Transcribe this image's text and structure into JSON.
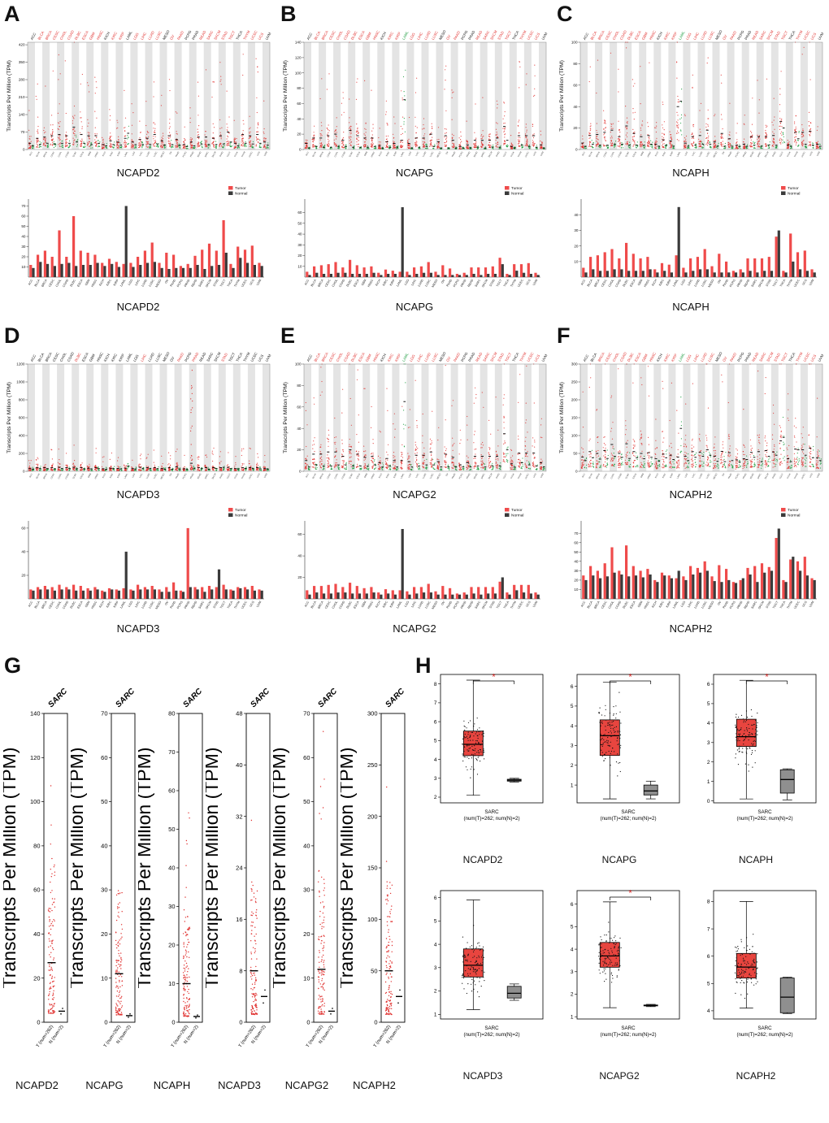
{
  "panel_letters": [
    "A",
    "B",
    "C",
    "D",
    "E",
    "F",
    "G",
    "H"
  ],
  "axis": {
    "tpm_label": "Transcripts Per Million (TPM)"
  },
  "legend": {
    "tumor": "Tumor",
    "normal": "Normal"
  },
  "colors": {
    "tumor_dot": "#e0302e",
    "normal_dot": "#1f9e42",
    "tumor_bar": "#ef4b4b",
    "normal_bar": "#3a3a3a",
    "tumor_box": "#e8453f",
    "normal_box": "#8f8f8f",
    "stripe": "#e4e4e4",
    "star": "#e0302e"
  },
  "cancer_types": [
    "ACC",
    "BLCA",
    "BRCA",
    "CESC",
    "CHOL",
    "COAD",
    "DLBC",
    "ESCA",
    "GBM",
    "HNSC",
    "KICH",
    "KIRC",
    "KIRP",
    "LAML",
    "LGG",
    "LIHC",
    "LUAD",
    "LUSC",
    "MESO",
    "OV",
    "PAAD",
    "PCPG",
    "PRAD",
    "READ",
    "SARC",
    "SKCM",
    "STAD",
    "TGCT",
    "THCA",
    "THYM",
    "UCEC",
    "UCS",
    "UVM"
  ],
  "chart_data": [
    {
      "type": "gepia-dot",
      "gene": "NCAPD2",
      "seed": 1,
      "ylim": [
        0,
        430
      ],
      "yticks": [
        0,
        70,
        140,
        210,
        280,
        350,
        420
      ],
      "label_colors": "krrrrrrrrrkrrkrrrrkrrkkrrrrrkrrrk",
      "tumor_med": [
        25,
        45,
        50,
        55,
        60,
        55,
        90,
        60,
        55,
        55,
        20,
        35,
        30,
        45,
        30,
        40,
        45,
        60,
        35,
        55,
        40,
        20,
        30,
        50,
        50,
        45,
        55,
        70,
        25,
        60,
        55,
        60,
        30
      ],
      "normal_med": [
        15,
        20,
        25,
        22,
        25,
        25,
        30,
        25,
        20,
        25,
        15,
        20,
        18,
        65,
        20,
        20,
        20,
        22,
        18,
        20,
        18,
        12,
        15,
        22,
        20,
        20,
        22,
        30,
        15,
        25,
        22,
        25,
        18
      ]
    },
    {
      "type": "bar",
      "gene": "NCAPD2",
      "ylim": [
        0,
        72
      ],
      "yticks": [
        10,
        20,
        30,
        40,
        50,
        60,
        70
      ],
      "tumor": [
        12,
        22,
        26,
        20,
        46,
        20,
        60,
        26,
        24,
        22,
        14,
        18,
        15,
        13,
        14,
        20,
        26,
        34,
        14,
        24,
        22,
        11,
        13,
        21,
        27,
        33,
        26,
        56,
        13,
        30,
        27,
        31,
        14
      ],
      "normal": [
        9,
        15,
        13,
        11,
        13,
        14,
        11,
        12,
        12,
        14,
        11,
        13,
        10,
        70,
        10,
        12,
        14,
        15,
        9,
        8,
        9,
        9,
        9,
        12,
        8,
        11,
        12,
        24,
        9,
        19,
        14,
        12,
        11
      ]
    },
    {
      "type": "gepia-dot",
      "gene": "NCAPG",
      "seed": 2,
      "ylim": [
        0,
        140
      ],
      "yticks": [
        0,
        20,
        40,
        60,
        80,
        100,
        120,
        140
      ],
      "label_colors": "krrrrrrrrrkrrgrrrrkrrkkrrrrrkrrrk",
      "tumor_med": [
        8,
        15,
        15,
        18,
        20,
        12,
        25,
        18,
        15,
        15,
        5,
        10,
        8,
        12,
        8,
        15,
        15,
        20,
        10,
        18,
        12,
        4,
        6,
        12,
        12,
        12,
        15,
        30,
        4,
        18,
        18,
        18,
        6
      ],
      "normal_med": [
        2,
        4,
        3,
        3,
        4,
        4,
        3,
        3,
        3,
        4,
        2,
        3,
        3,
        65,
        2,
        3,
        4,
        4,
        2,
        2,
        2,
        2,
        2,
        3,
        2,
        3,
        3,
        12,
        2,
        6,
        4,
        3,
        2
      ]
    },
    {
      "type": "bar",
      "gene": "NCAPG",
      "ylim": [
        0,
        68
      ],
      "yticks": [
        10,
        20,
        30,
        40,
        50,
        60
      ],
      "tumor": [
        5,
        10,
        11,
        12,
        14,
        9,
        16,
        11,
        9,
        10,
        4,
        7,
        6,
        5,
        5,
        9,
        10,
        14,
        5,
        11,
        8,
        3,
        4,
        9,
        9,
        9,
        10,
        18,
        3,
        12,
        12,
        13,
        4
      ],
      "normal": [
        2,
        4,
        3,
        3,
        4,
        4,
        3,
        3,
        3,
        4,
        2,
        3,
        3,
        65,
        2,
        3,
        4,
        4,
        2,
        2,
        2,
        2,
        2,
        3,
        2,
        3,
        3,
        12,
        2,
        6,
        4,
        3,
        2
      ]
    },
    {
      "type": "gepia-dot",
      "gene": "NCAPH",
      "seed": 3,
      "ylim": [
        0,
        100
      ],
      "yticks": [
        0,
        20,
        40,
        60,
        80,
        100
      ],
      "label_colors": "krrrrrrrrrkrrgrrrrkrrkkrrrrrkrrrk",
      "tumor_med": [
        6,
        13,
        14,
        16,
        18,
        12,
        22,
        15,
        12,
        13,
        5,
        9,
        8,
        40,
        6,
        12,
        13,
        18,
        7,
        15,
        10,
        4,
        5,
        12,
        12,
        12,
        13,
        26,
        4,
        16,
        16,
        17,
        5
      ],
      "normal_med": [
        3,
        5,
        4,
        4,
        5,
        5,
        4,
        4,
        4,
        5,
        3,
        4,
        3,
        45,
        3,
        4,
        5,
        5,
        3,
        3,
        3,
        3,
        3,
        4,
        3,
        4,
        4,
        20,
        3,
        10,
        5,
        4,
        3
      ]
    },
    {
      "type": "bar",
      "gene": "NCAPH",
      "ylim": [
        0,
        47
      ],
      "yticks": [
        10,
        20,
        30,
        40
      ],
      "tumor": [
        6,
        13,
        14,
        16,
        18,
        12,
        22,
        15,
        12,
        13,
        5,
        9,
        8,
        14,
        6,
        12,
        13,
        18,
        7,
        15,
        10,
        4,
        5,
        12,
        12,
        12,
        13,
        26,
        4,
        28,
        16,
        17,
        5
      ],
      "normal": [
        3,
        5,
        4,
        4,
        5,
        5,
        4,
        4,
        4,
        5,
        3,
        4,
        3,
        45,
        3,
        4,
        5,
        5,
        3,
        3,
        3,
        3,
        3,
        4,
        3,
        4,
        4,
        30,
        3,
        10,
        5,
        4,
        3
      ]
    },
    {
      "type": "gepia-dot",
      "gene": "NCAPD3",
      "seed": 4,
      "ylim": [
        0,
        1200
      ],
      "yticks": [
        0,
        200,
        400,
        600,
        800,
        1000,
        1200
      ],
      "label_colors": "kkkkkkrkkkkkkkkrkkkkrkrkkkrkkkkkk",
      "spikes": [
        {
          "i": 22,
          "max": 1150
        }
      ],
      "tumor_med": [
        30,
        40,
        40,
        40,
        45,
        40,
        45,
        42,
        35,
        40,
        28,
        35,
        32,
        35,
        30,
        45,
        40,
        42,
        30,
        40,
        50,
        28,
        90,
        40,
        40,
        42,
        40,
        45,
        30,
        40,
        40,
        42,
        30
      ],
      "normal_med": [
        25,
        30,
        30,
        28,
        30,
        30,
        28,
        28,
        26,
        30,
        24,
        30,
        27,
        60,
        26,
        30,
        30,
        30,
        24,
        24,
        26,
        24,
        35,
        30,
        24,
        30,
        45,
        30,
        26,
        32,
        30,
        28,
        26
      ]
    },
    {
      "type": "bar",
      "gene": "NCAPD3",
      "ylim": [
        0,
        62
      ],
      "yticks": [
        20,
        40,
        60
      ],
      "tumor": [
        8,
        10,
        11,
        10,
        12,
        10,
        12,
        11,
        9,
        10,
        7,
        9,
        8,
        9,
        8,
        12,
        10,
        11,
        8,
        10,
        14,
        7,
        60,
        10,
        10,
        11,
        10,
        12,
        8,
        10,
        10,
        11,
        8
      ],
      "normal": [
        7,
        8,
        8,
        7,
        8,
        8,
        7,
        7,
        7,
        8,
        6,
        8,
        7,
        40,
        7,
        8,
        8,
        8,
        6,
        6,
        7,
        6,
        10,
        8,
        6,
        8,
        25,
        8,
        7,
        9,
        8,
        7,
        7
      ]
    },
    {
      "type": "gepia-dot",
      "gene": "NCAPG2",
      "seed": 5,
      "ylim": [
        0,
        100
      ],
      "yticks": [
        0,
        20,
        40,
        60,
        80,
        100
      ],
      "label_colors": "krrrrrrrrrkrrgrrrrkrrkkrrrrrkrrrk",
      "tumor_med": [
        10,
        16,
        16,
        18,
        18,
        14,
        20,
        16,
        13,
        14,
        8,
        12,
        10,
        10,
        9,
        15,
        15,
        18,
        9,
        16,
        13,
        6,
        8,
        14,
        14,
        14,
        14,
        35,
        7,
        17,
        17,
        17,
        8
      ],
      "normal_med": [
        4,
        6,
        5,
        5,
        6,
        6,
        5,
        5,
        5,
        6,
        4,
        5,
        4,
        65,
        4,
        5,
        6,
        6,
        4,
        4,
        4,
        4,
        4,
        5,
        4,
        5,
        5,
        20,
        4,
        8,
        6,
        5,
        4
      ]
    },
    {
      "type": "bar",
      "gene": "NCAPG2",
      "ylim": [
        0,
        68
      ],
      "yticks": [
        20,
        40,
        60
      ],
      "tumor": [
        8,
        12,
        12,
        13,
        14,
        11,
        15,
        12,
        10,
        11,
        6,
        9,
        8,
        8,
        7,
        11,
        11,
        14,
        7,
        12,
        10,
        5,
        6,
        11,
        11,
        11,
        11,
        16,
        6,
        13,
        13,
        13,
        6
      ],
      "normal": [
        4,
        6,
        5,
        5,
        6,
        6,
        5,
        5,
        5,
        6,
        4,
        5,
        4,
        65,
        4,
        5,
        6,
        6,
        4,
        4,
        4,
        4,
        4,
        5,
        4,
        5,
        5,
        20,
        4,
        8,
        6,
        5,
        4
      ]
    },
    {
      "type": "gepia-dot",
      "gene": "NCAPH2",
      "seed": 6,
      "ylim": [
        0,
        300
      ],
      "yticks": [
        0,
        50,
        100,
        150,
        200,
        250,
        300
      ],
      "label_colors": "kkrrrrrrrrkrrgrrrrkrrkkrrrrrkrrrk",
      "tumor_med": [
        40,
        55,
        50,
        58,
        75,
        50,
        77,
        55,
        50,
        52,
        35,
        48,
        45,
        40,
        42,
        55,
        53,
        60,
        42,
        56,
        52,
        32,
        35,
        53,
        55,
        58,
        54,
        85,
        35,
        62,
        60,
        65,
        38
      ],
      "normal_med": [
        30,
        38,
        34,
        36,
        42,
        39,
        36,
        38,
        35,
        39,
        28,
        38,
        33,
        120,
        30,
        39,
        42,
        45,
        28,
        27,
        30,
        26,
        33,
        39,
        27,
        42,
        45,
        95,
        27,
        60,
        45,
        38,
        30
      ]
    },
    {
      "type": "bar",
      "gene": "NCAPH2",
      "ylim": [
        0,
        78
      ],
      "yticks": [
        10,
        20,
        30,
        40,
        50,
        60,
        70
      ],
      "tumor": [
        25,
        35,
        30,
        38,
        55,
        30,
        57,
        35,
        30,
        32,
        20,
        28,
        25,
        22,
        24,
        35,
        33,
        40,
        24,
        36,
        32,
        18,
        20,
        33,
        35,
        38,
        34,
        65,
        20,
        42,
        40,
        45,
        22
      ],
      "normal": [
        20,
        25,
        22,
        24,
        28,
        26,
        24,
        25,
        23,
        26,
        18,
        25,
        22,
        30,
        20,
        26,
        28,
        30,
        19,
        18,
        20,
        17,
        22,
        26,
        18,
        28,
        30,
        75,
        18,
        45,
        30,
        25,
        20
      ]
    },
    {
      "type": "strip",
      "gene": "NCAPD2",
      "title": "SARC",
      "seed": 21,
      "ymax": 140,
      "ystep": 20,
      "t_med": 27,
      "t_max": 138,
      "n_med": 5,
      "t_label": "T (num=262)",
      "n_label": "N (num=2)"
    },
    {
      "type": "strip",
      "gene": "NCAPG",
      "title": "SARC",
      "seed": 22,
      "ymax": 70,
      "ystep": 10,
      "t_med": 11,
      "t_max": 68,
      "n_med": 1.5,
      "t_label": "T (num=262)",
      "n_label": "N (num=2)"
    },
    {
      "type": "strip",
      "gene": "NCAPH",
      "title": "SARC",
      "seed": 23,
      "ymax": 80,
      "ystep": 10,
      "t_med": 10,
      "t_max": 78,
      "n_med": 1.5,
      "t_label": "T (num=262)",
      "n_label": "N (num=2)"
    },
    {
      "type": "strip",
      "gene": "NCAPD3",
      "title": "SARC",
      "seed": 24,
      "ymax": 48,
      "ystep": 8,
      "t_med": 8,
      "t_max": 47,
      "n_med": 4,
      "t_label": "T (num=262)",
      "n_label": "N (num=2)"
    },
    {
      "type": "strip",
      "gene": "NCAPG2",
      "title": "SARC",
      "seed": 25,
      "ymax": 70,
      "ystep": 10,
      "t_med": 12,
      "t_max": 69,
      "n_med": 2.5,
      "t_label": "T (num=262)",
      "n_label": "N (num=2)"
    },
    {
      "type": "strip",
      "gene": "NCAPH2",
      "title": "SARC",
      "seed": 26,
      "ymax": 300,
      "ystep": 50,
      "t_med": 50,
      "t_max": 295,
      "n_med": 25,
      "t_label": "T (num=262)",
      "n_label": "N (num=2)"
    },
    {
      "type": "box",
      "gene": "NCAPD2",
      "seed": 31,
      "xlabel1": "SARC",
      "xlabel2": "(num(T)=262; num(N)=2)",
      "ylim": [
        1.7,
        8.5
      ],
      "yticks": [
        2,
        3,
        4,
        5,
        6,
        7,
        8
      ],
      "sig": true,
      "tumor": {
        "lo": 2.1,
        "q1": 4.2,
        "med": 4.8,
        "q3": 5.5,
        "hi": 8.2
      },
      "normal": {
        "lo": 2.8,
        "q1": 2.85,
        "med": 2.9,
        "q3": 2.95,
        "hi": 3.0
      }
    },
    {
      "type": "box",
      "gene": "NCAPG",
      "seed": 32,
      "xlabel1": "SARC",
      "xlabel2": "(num(T)=262; num(N)=2)",
      "ylim": [
        0.1,
        6.6
      ],
      "yticks": [
        1,
        2,
        3,
        4,
        5,
        6
      ],
      "sig": true,
      "tumor": {
        "lo": 0.3,
        "q1": 2.5,
        "med": 3.5,
        "q3": 4.3,
        "hi": 6.2
      },
      "normal": {
        "lo": 0.3,
        "q1": 0.5,
        "med": 0.7,
        "q3": 1.0,
        "hi": 1.2
      }
    },
    {
      "type": "box",
      "gene": "NCAPH",
      "seed": 33,
      "xlabel1": "SARC",
      "xlabel2": "(num(T)=262; num(N)=2)",
      "ylim": [
        -0.1,
        6.5
      ],
      "yticks": [
        0,
        1,
        2,
        3,
        4,
        5,
        6
      ],
      "sig": true,
      "tumor": {
        "lo": 0.1,
        "q1": 2.8,
        "med": 3.3,
        "q3": 4.2,
        "hi": 6.2
      },
      "normal": {
        "lo": 0.05,
        "q1": 0.4,
        "med": 1.1,
        "q3": 1.6,
        "hi": 1.65
      }
    },
    {
      "type": "box",
      "gene": "NCAPD3",
      "seed": 34,
      "xlabel1": "SARC",
      "xlabel2": "(num(T)=262; num(N)=2)",
      "ylim": [
        0.8,
        6.3
      ],
      "yticks": [
        1,
        2,
        3,
        4,
        5,
        6
      ],
      "sig": false,
      "tumor": {
        "lo": 1.2,
        "q1": 2.6,
        "med": 3.1,
        "q3": 3.8,
        "hi": 5.9
      },
      "normal": {
        "lo": 1.6,
        "q1": 1.7,
        "med": 1.9,
        "q3": 2.2,
        "hi": 2.3
      }
    },
    {
      "type": "box",
      "gene": "NCAPG2",
      "seed": 35,
      "xlabel1": "SARC",
      "xlabel2": "(num(T)=262; num(N)=2)",
      "ylim": [
        0.9,
        6.6
      ],
      "yticks": [
        1,
        2,
        3,
        4,
        5,
        6
      ],
      "sig": true,
      "tumor": {
        "lo": 1.4,
        "q1": 3.2,
        "med": 3.7,
        "q3": 4.3,
        "hi": 6.1
      },
      "normal": {
        "lo": 1.45,
        "q1": 1.48,
        "med": 1.5,
        "q3": 1.52,
        "hi": 1.55
      }
    },
    {
      "type": "box",
      "gene": "NCAPH2",
      "seed": 36,
      "xlabel1": "SARC",
      "xlabel2": "(num(T)=262; num(N)=2)",
      "ylim": [
        3.7,
        8.4
      ],
      "yticks": [
        4,
        5,
        6,
        7,
        8
      ],
      "sig": false,
      "tumor": {
        "lo": 4.1,
        "q1": 5.2,
        "med": 5.6,
        "q3": 6.1,
        "hi": 8.0
      },
      "normal": {
        "lo": 3.9,
        "q1": 3.93,
        "med": 4.5,
        "q3": 5.2,
        "hi": 5.23
      }
    }
  ]
}
